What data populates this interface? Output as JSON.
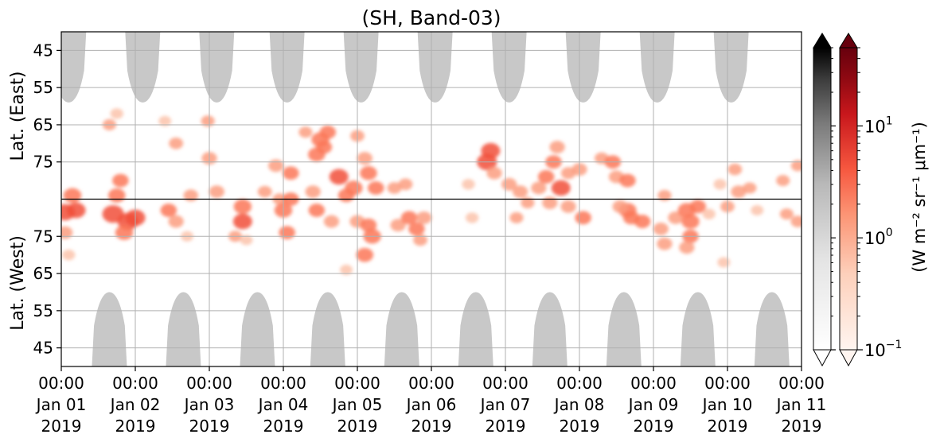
{
  "chart_data": {
    "type": "heatmap",
    "title": "(SH, Band-03)",
    "y_top_label": "Lat. (East)",
    "y_bottom_label": "Lat. (West)",
    "y_top_ticks": [
      "45",
      "55",
      "65",
      "75"
    ],
    "y_bottom_ticks": [
      "75",
      "65",
      "55",
      "45"
    ],
    "y_top_range": [
      40,
      85
    ],
    "y_bottom_range": [
      85,
      40
    ],
    "x_ticks": [
      {
        "time": "00:00",
        "date": "Jan 01",
        "year": "2019"
      },
      {
        "time": "00:00",
        "date": "Jan 02",
        "year": "2019"
      },
      {
        "time": "00:00",
        "date": "Jan 03",
        "year": "2019"
      },
      {
        "time": "00:00",
        "date": "Jan 04",
        "year": "2019"
      },
      {
        "time": "00:00",
        "date": "Jan 05",
        "year": "2019"
      },
      {
        "time": "00:00",
        "date": "Jan 06",
        "year": "2019"
      },
      {
        "time": "00:00",
        "date": "Jan 07",
        "year": "2019"
      },
      {
        "time": "00:00",
        "date": "Jan 08",
        "year": "2019"
      },
      {
        "time": "00:00",
        "date": "Jan 09",
        "year": "2019"
      },
      {
        "time": "00:00",
        "date": "Jan 10",
        "year": "2019"
      },
      {
        "time": "00:00",
        "date": "Jan 11",
        "year": "2019"
      }
    ],
    "x_range_days": [
      0,
      10
    ],
    "grid": true,
    "colorbar": {
      "label": "(W m⁻² sr⁻¹ μm⁻¹)",
      "scale": "log",
      "range": [
        0.1,
        50
      ],
      "ticks": [
        {
          "base": "10",
          "exp": "1",
          "value": 10
        },
        {
          "base": "10",
          "exp": "0",
          "value": 1
        },
        {
          "base": "10",
          "exp": "−1",
          "value": 0.1
        }
      ],
      "colormaps": [
        "Greys",
        "Reds"
      ],
      "extend": "both"
    },
    "no_data_regions": {
      "description_color": "#c8c8c8",
      "east_centers_days": [
        0.1,
        1.1,
        2.1,
        3.05,
        4.05,
        5.05,
        6.05,
        7.05,
        8.05,
        9.05
      ],
      "east_edge_lat": 59,
      "west_centers_days": [
        0.65,
        1.65,
        2.65,
        3.6,
        4.6,
        5.6,
        6.6,
        7.6,
        8.6,
        9.6
      ],
      "west_edge_lat": 60
    },
    "emission_patches": [
      {
        "day": 0.05,
        "lat": 81.5,
        "hemi": "west",
        "value": 5
      },
      {
        "day": 0.2,
        "lat": 82,
        "hemi": "west",
        "value": 4
      },
      {
        "day": 0.15,
        "lat": 84,
        "hemi": "east",
        "value": 3
      },
      {
        "day": 0.05,
        "lat": 76,
        "hemi": "west",
        "value": 1.5
      },
      {
        "day": 0.1,
        "lat": 70,
        "hemi": "west",
        "value": 0.6
      },
      {
        "day": 0.75,
        "lat": 84,
        "hemi": "east",
        "value": 2.5
      },
      {
        "day": 0.7,
        "lat": 81,
        "hemi": "west",
        "value": 7
      },
      {
        "day": 0.9,
        "lat": 79,
        "hemi": "west",
        "value": 6
      },
      {
        "day": 1.0,
        "lat": 80,
        "hemi": "west",
        "value": 5
      },
      {
        "day": 0.85,
        "lat": 76,
        "hemi": "west",
        "value": 3
      },
      {
        "day": 0.8,
        "lat": 80,
        "hemi": "east",
        "value": 2
      },
      {
        "day": 0.65,
        "lat": 65,
        "hemi": "east",
        "value": 0.8
      },
      {
        "day": 0.75,
        "lat": 62,
        "hemi": "east",
        "value": 0.6
      },
      {
        "day": 1.55,
        "lat": 70,
        "hemi": "east",
        "value": 1
      },
      {
        "day": 1.45,
        "lat": 82,
        "hemi": "west",
        "value": 2
      },
      {
        "day": 1.55,
        "lat": 79,
        "hemi": "west",
        "value": 1.5
      },
      {
        "day": 1.7,
        "lat": 75,
        "hemi": "west",
        "value": 0.5
      },
      {
        "day": 1.4,
        "lat": 64,
        "hemi": "east",
        "value": 0.5
      },
      {
        "day": 1.75,
        "lat": 84,
        "hemi": "east",
        "value": 1.2
      },
      {
        "day": 2.0,
        "lat": 74,
        "hemi": "east",
        "value": 1.5
      },
      {
        "day": 1.98,
        "lat": 64,
        "hemi": "east",
        "value": 0.8
      },
      {
        "day": 2.1,
        "lat": 83,
        "hemi": "east",
        "value": 1.5
      },
      {
        "day": 2.45,
        "lat": 83,
        "hemi": "west",
        "value": 3
      },
      {
        "day": 2.45,
        "lat": 79,
        "hemi": "west",
        "value": 4
      },
      {
        "day": 2.35,
        "lat": 75,
        "hemi": "west",
        "value": 0.8
      },
      {
        "day": 2.75,
        "lat": 83,
        "hemi": "east",
        "value": 1
      },
      {
        "day": 2.95,
        "lat": 85,
        "hemi": "west",
        "value": 1
      },
      {
        "day": 3.1,
        "lat": 85,
        "hemi": "west",
        "value": 2
      },
      {
        "day": 3.0,
        "lat": 82,
        "hemi": "west",
        "value": 3
      },
      {
        "day": 3.05,
        "lat": 76,
        "hemi": "west",
        "value": 2
      },
      {
        "day": 2.9,
        "lat": 76,
        "hemi": "east",
        "value": 1.5
      },
      {
        "day": 3.1,
        "lat": 78,
        "hemi": "east",
        "value": 2
      },
      {
        "day": 3.5,
        "lat": 69,
        "hemi": "east",
        "value": 3
      },
      {
        "day": 3.45,
        "lat": 73,
        "hemi": "east",
        "value": 2.5
      },
      {
        "day": 3.6,
        "lat": 67,
        "hemi": "east",
        "value": 2
      },
      {
        "day": 3.55,
        "lat": 71,
        "hemi": "east",
        "value": 1.8
      },
      {
        "day": 3.3,
        "lat": 67,
        "hemi": "east",
        "value": 0.8
      },
      {
        "day": 3.75,
        "lat": 79,
        "hemi": "east",
        "value": 4
      },
      {
        "day": 3.95,
        "lat": 82,
        "hemi": "east",
        "value": 3
      },
      {
        "day": 3.85,
        "lat": 84,
        "hemi": "east",
        "value": 2
      },
      {
        "day": 3.4,
        "lat": 83,
        "hemi": "east",
        "value": 1.5
      },
      {
        "day": 3.45,
        "lat": 82,
        "hemi": "west",
        "value": 2
      },
      {
        "day": 3.65,
        "lat": 79,
        "hemi": "west",
        "value": 1.5
      },
      {
        "day": 4.0,
        "lat": 79,
        "hemi": "west",
        "value": 1.5
      },
      {
        "day": 4.0,
        "lat": 68,
        "hemi": "east",
        "value": 1
      },
      {
        "day": 4.15,
        "lat": 78,
        "hemi": "east",
        "value": 2.5
      },
      {
        "day": 4.25,
        "lat": 82,
        "hemi": "east",
        "value": 2
      },
      {
        "day": 4.1,
        "lat": 74,
        "hemi": "east",
        "value": 1.5
      },
      {
        "day": 4.2,
        "lat": 75,
        "hemi": "west",
        "value": 3
      },
      {
        "day": 4.15,
        "lat": 78,
        "hemi": "west",
        "value": 2
      },
      {
        "day": 4.1,
        "lat": 70,
        "hemi": "west",
        "value": 2.5
      },
      {
        "day": 3.85,
        "lat": 66,
        "hemi": "west",
        "value": 0.5
      },
      {
        "day": 4.5,
        "lat": 82,
        "hemi": "east",
        "value": 1
      },
      {
        "day": 4.65,
        "lat": 81,
        "hemi": "east",
        "value": 1
      },
      {
        "day": 4.55,
        "lat": 78,
        "hemi": "west",
        "value": 1.5
      },
      {
        "day": 4.7,
        "lat": 80,
        "hemi": "west",
        "value": 2
      },
      {
        "day": 4.8,
        "lat": 77,
        "hemi": "west",
        "value": 2
      },
      {
        "day": 4.9,
        "lat": 80,
        "hemi": "west",
        "value": 1.5
      },
      {
        "day": 4.85,
        "lat": 74,
        "hemi": "west",
        "value": 1
      },
      {
        "day": 5.5,
        "lat": 81,
        "hemi": "east",
        "value": 0.6
      },
      {
        "day": 5.55,
        "lat": 80,
        "hemi": "west",
        "value": 0.6
      },
      {
        "day": 5.75,
        "lat": 75,
        "hemi": "east",
        "value": 5
      },
      {
        "day": 5.8,
        "lat": 72,
        "hemi": "east",
        "value": 4
      },
      {
        "day": 5.85,
        "lat": 78,
        "hemi": "east",
        "value": 1.5
      },
      {
        "day": 6.05,
        "lat": 81,
        "hemi": "east",
        "value": 1.5
      },
      {
        "day": 6.2,
        "lat": 83,
        "hemi": "east",
        "value": 1.5
      },
      {
        "day": 6.15,
        "lat": 80,
        "hemi": "west",
        "value": 0.8
      },
      {
        "day": 6.3,
        "lat": 84,
        "hemi": "west",
        "value": 0.8
      },
      {
        "day": 6.45,
        "lat": 82,
        "hemi": "east",
        "value": 1.5
      },
      {
        "day": 6.6,
        "lat": 84,
        "hemi": "west",
        "value": 1.5
      },
      {
        "day": 6.55,
        "lat": 79,
        "hemi": "east",
        "value": 2
      },
      {
        "day": 6.75,
        "lat": 82,
        "hemi": "east",
        "value": 4
      },
      {
        "day": 6.65,
        "lat": 75,
        "hemi": "east",
        "value": 2
      },
      {
        "day": 6.7,
        "lat": 71,
        "hemi": "east",
        "value": 1.5
      },
      {
        "day": 6.85,
        "lat": 78,
        "hemi": "east",
        "value": 1.2
      },
      {
        "day": 6.85,
        "lat": 83,
        "hemi": "west",
        "value": 1.5
      },
      {
        "day": 7.05,
        "lat": 80,
        "hemi": "west",
        "value": 2
      },
      {
        "day": 7.0,
        "lat": 77,
        "hemi": "east",
        "value": 1.5
      },
      {
        "day": 7.3,
        "lat": 74,
        "hemi": "east",
        "value": 1
      },
      {
        "day": 7.45,
        "lat": 75,
        "hemi": "east",
        "value": 2
      },
      {
        "day": 7.5,
        "lat": 79,
        "hemi": "east",
        "value": 1.5
      },
      {
        "day": 7.65,
        "lat": 80,
        "hemi": "east",
        "value": 2
      },
      {
        "day": 7.65,
        "lat": 82,
        "hemi": "west",
        "value": 3
      },
      {
        "day": 7.7,
        "lat": 80,
        "hemi": "west",
        "value": 2
      },
      {
        "day": 7.85,
        "lat": 79,
        "hemi": "west",
        "value": 2
      },
      {
        "day": 7.55,
        "lat": 83,
        "hemi": "west",
        "value": 1.5
      },
      {
        "day": 8.1,
        "lat": 77,
        "hemi": "west",
        "value": 1.5
      },
      {
        "day": 8.15,
        "lat": 73,
        "hemi": "west",
        "value": 1.5
      },
      {
        "day": 8.3,
        "lat": 80,
        "hemi": "west",
        "value": 1.5
      },
      {
        "day": 8.45,
        "lat": 82,
        "hemi": "west",
        "value": 3
      },
      {
        "day": 8.5,
        "lat": 79,
        "hemi": "west",
        "value": 3
      },
      {
        "day": 8.5,
        "lat": 75,
        "hemi": "west",
        "value": 2
      },
      {
        "day": 8.45,
        "lat": 72,
        "hemi": "west",
        "value": 1.5
      },
      {
        "day": 8.6,
        "lat": 83,
        "hemi": "west",
        "value": 2
      },
      {
        "day": 8.15,
        "lat": 84,
        "hemi": "east",
        "value": 0.8
      },
      {
        "day": 8.75,
        "lat": 81,
        "hemi": "west",
        "value": 0.6
      },
      {
        "day": 8.9,
        "lat": 81,
        "hemi": "east",
        "value": 0.6
      },
      {
        "day": 9.1,
        "lat": 77,
        "hemi": "east",
        "value": 1
      },
      {
        "day": 9.15,
        "lat": 83,
        "hemi": "east",
        "value": 1.5
      },
      {
        "day": 9.3,
        "lat": 82,
        "hemi": "east",
        "value": 0.8
      },
      {
        "day": 9.0,
        "lat": 83,
        "hemi": "west",
        "value": 1
      },
      {
        "day": 9.4,
        "lat": 82,
        "hemi": "west",
        "value": 0.5
      },
      {
        "day": 8.95,
        "lat": 68,
        "hemi": "west",
        "value": 0.5
      },
      {
        "day": 9.75,
        "lat": 80,
        "hemi": "east",
        "value": 0.8
      },
      {
        "day": 9.8,
        "lat": 81,
        "hemi": "west",
        "value": 0.8
      },
      {
        "day": 9.95,
        "lat": 79,
        "hemi": "west",
        "value": 1
      },
      {
        "day": 9.95,
        "lat": 76,
        "hemi": "east",
        "value": 0.8
      },
      {
        "day": 2.5,
        "lat": 74,
        "hemi": "west",
        "value": 0.5
      }
    ]
  }
}
